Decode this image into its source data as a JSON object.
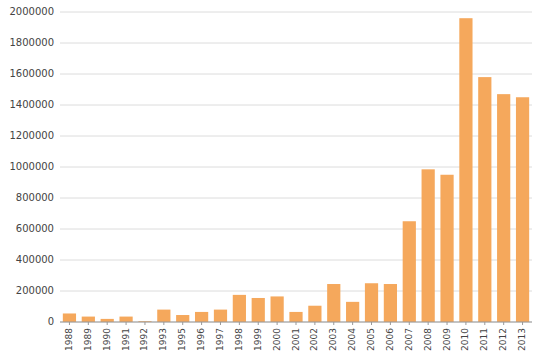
{
  "chart_data": {
    "type": "bar",
    "categories": [
      "1988",
      "1989",
      "1990",
      "1991",
      "1992",
      "1993",
      "1995",
      "1996",
      "1997",
      "1998",
      "1999",
      "2000",
      "2001",
      "2002",
      "2003",
      "2004",
      "2005",
      "2006",
      "2007",
      "2008",
      "2009",
      "2010",
      "2011",
      "2012",
      "2013"
    ],
    "values": [
      55000,
      35000,
      20000,
      35000,
      5000,
      80000,
      45000,
      65000,
      80000,
      175000,
      155000,
      165000,
      65000,
      105000,
      245000,
      130000,
      250000,
      245000,
      650000,
      985000,
      950000,
      1960000,
      1580000,
      1470000,
      1450000
    ],
    "color": "#F5A85C",
    "ylim": [
      0,
      2000000
    ],
    "yticks": [
      0,
      200000,
      400000,
      600000,
      800000,
      1000000,
      1200000,
      1400000,
      1600000,
      1800000,
      2000000
    ],
    "grid": true
  }
}
